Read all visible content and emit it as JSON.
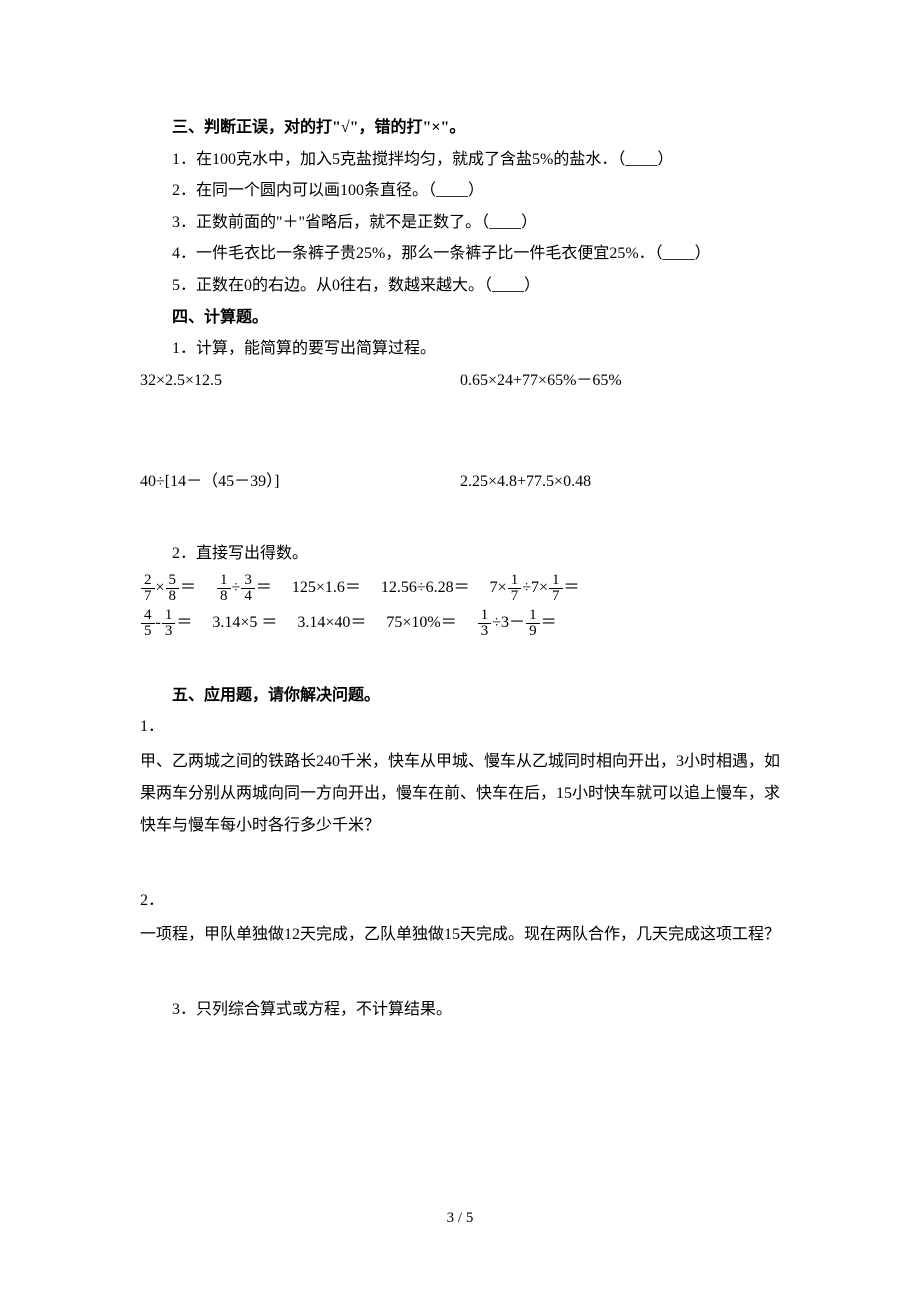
{
  "page": {
    "number": "3 / 5",
    "font_color": "#000000",
    "background_color": "#ffffff",
    "base_fontsize": 16,
    "heading_fontweight": "bold"
  },
  "section3": {
    "heading": "三、判断正误，对的打\"√\"，错的打\"×\"。",
    "items": [
      "1．在100克水中，加入5克盐搅拌均匀，就成了含盐5%的盐水．（____）",
      "2．在同一个圆内可以画100条直径。（____）",
      "3．正数前面的\"＋\"省略后，就不是正数了。（____）",
      "4．一件毛衣比一条裤子贵25%，那么一条裤子比一件毛衣便宜25%．（____）",
      "5．正数在0的右边。从0往右，数越来越大。（____）"
    ]
  },
  "section4": {
    "heading": "四、计算题。",
    "sub1_heading": "1．计算，能简算的要写出简算过程。",
    "sub1_row1_left": "32×2.5×12.5",
    "sub1_row1_right": "0.65×24+77×65%－65%",
    "sub1_row2_left": "40÷[14－（45－39）]",
    "sub1_row2_right": "2.25×4.8+77.5×0.48",
    "sub2_heading": "2．直接写出得数。",
    "row1": {
      "item1": {
        "f1n": "2",
        "f1d": "7",
        "op": "×",
        "f2n": "5",
        "f2d": "8",
        "eq": "＝"
      },
      "item2": {
        "f1n": "1",
        "f1d": "8",
        "op": "÷",
        "f2n": "3",
        "f2d": "4",
        "eq": "＝"
      },
      "item3": "125×1.6＝",
      "item4": "12.56÷6.28＝",
      "item5": {
        "pre": "7×",
        "f1n": "1",
        "f1d": "7",
        "mid": "÷7×",
        "f2n": "1",
        "f2d": "7",
        "eq": "＝"
      }
    },
    "row2": {
      "item1": {
        "f1n": "4",
        "f1d": "5",
        "op": "-",
        "f2n": "1",
        "f2d": "3",
        "eq": "＝"
      },
      "item2": "3.14×5 ＝",
      "item3": "3.14×40＝",
      "item4": "75×10%＝",
      "item5": {
        "f1n": "1",
        "f1d": "3",
        "mid": "÷3－",
        "f2n": "1",
        "f2d": "9",
        "eq": "＝"
      }
    }
  },
  "section5": {
    "heading": "五、应用题，请你解决问题。",
    "q1_num": "1．",
    "q1_text": "甲、乙两城之间的铁路长240千米，快车从甲城、慢车从乙城同时相向开出，3小时相遇，如果两车分别从两城向同一方向开出，慢车在前、快车在后，15小时快车就可以追上慢车，求快车与慢车每小时各行多少千米？",
    "q2_num": "2．",
    "q2_text": "一项程，甲队单独做12天完成，乙队单独做15天完成。现在两队合作，几天完成这项工程？",
    "q3_text": "3．只列综合算式或方程，不计算结果。"
  }
}
